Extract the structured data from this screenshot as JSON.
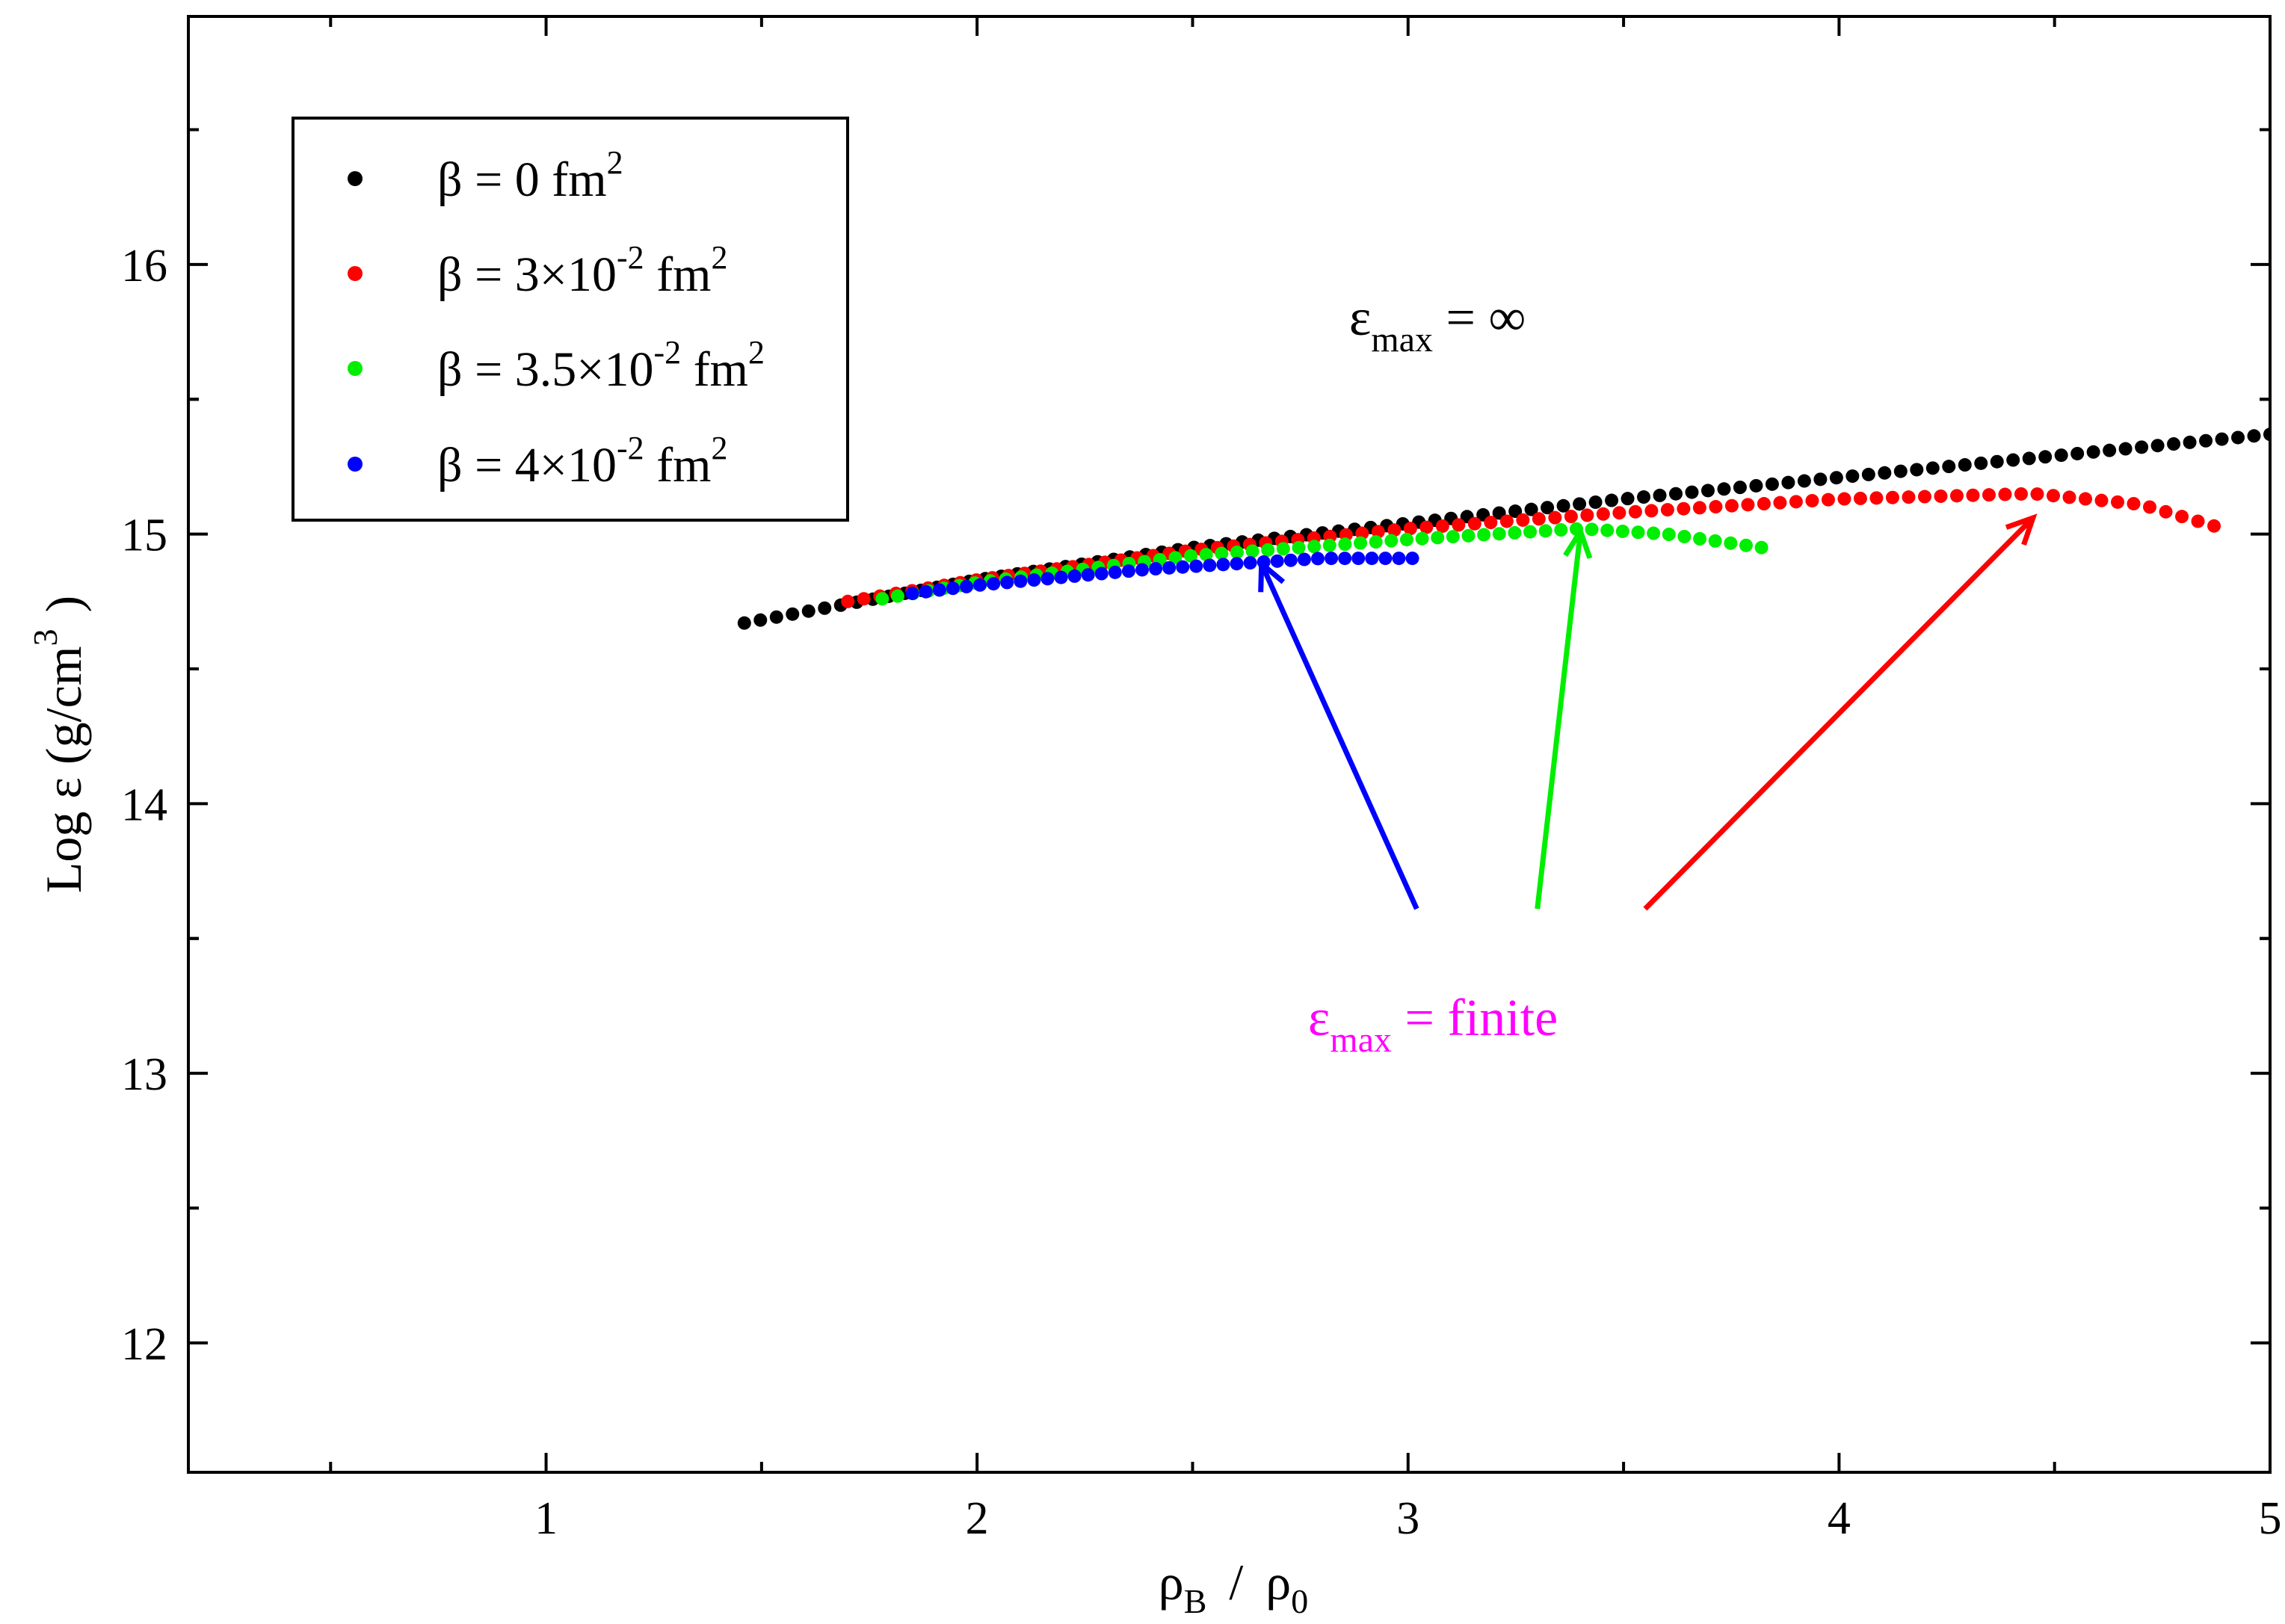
{
  "chart_data": {
    "type": "scatter",
    "title": "",
    "xlabel": {
      "main": "ρ",
      "sub1": "B",
      "slash": "/",
      "main2": "ρ",
      "sub2": "0"
    },
    "ylabel": {
      "text": "Log  ε  (g/cm",
      "sup": "3",
      "close": ")"
    },
    "xlim": [
      0.17,
      5.0
    ],
    "ylim": [
      11.52,
      16.92
    ],
    "xticks": [
      1,
      2,
      3,
      4,
      5
    ],
    "xtick_labels": [
      "1",
      "2",
      "3",
      "4",
      "5"
    ],
    "yticks": [
      12,
      13,
      14,
      15,
      16
    ],
    "ytick_labels": [
      "12",
      "13",
      "14",
      "15",
      "16"
    ],
    "grid": false,
    "legend_position": "top-left",
    "legend": [
      {
        "pre": "β = 0  fm",
        "sup": "2",
        "post": "",
        "color": "#000000"
      },
      {
        "pre": "β = 3×10",
        "sup": "-2",
        "post": " fm",
        "sup2": "2",
        "color": "#ff0000"
      },
      {
        "pre": "β = 3.5×10",
        "sup": "-2",
        "post": " fm",
        "sup2": "2",
        "color": "#00ee00"
      },
      {
        "pre": "β = 4×10",
        "sup": "-2",
        "post": " fm",
        "sup2": "2",
        "color": "#0000ff"
      }
    ],
    "series": [
      {
        "name": "β = 0 fm²",
        "color": "#000000",
        "x_range": [
          1.46,
          5.0
        ],
        "count": 96,
        "anchors": [
          [
            1.46,
            14.67
          ],
          [
            2.0,
            14.83
          ],
          [
            2.5,
            14.95
          ],
          [
            3.0,
            15.04
          ],
          [
            3.5,
            15.13
          ],
          [
            4.0,
            15.21
          ],
          [
            4.5,
            15.29
          ],
          [
            5.0,
            15.37
          ]
        ]
      },
      {
        "name": "β = 3×10⁻² fm²",
        "color": "#ff0000",
        "x_range": [
          1.7,
          4.87
        ],
        "count": 86,
        "anchors": [
          [
            1.7,
            14.75
          ],
          [
            2.0,
            14.83
          ],
          [
            2.5,
            14.94
          ],
          [
            3.0,
            15.02
          ],
          [
            3.5,
            15.08
          ],
          [
            4.0,
            15.13
          ],
          [
            4.45,
            15.15
          ],
          [
            4.7,
            15.11
          ],
          [
            4.87,
            15.03
          ]
        ]
      },
      {
        "name": "β = 3.5×10⁻² fm²",
        "color": "#00ee00",
        "x_range": [
          1.78,
          3.82
        ],
        "count": 58,
        "anchors": [
          [
            1.78,
            14.76
          ],
          [
            2.0,
            14.82
          ],
          [
            2.5,
            14.92
          ],
          [
            3.0,
            14.98
          ],
          [
            3.4,
            15.02
          ],
          [
            3.6,
            15.0
          ],
          [
            3.82,
            14.95
          ]
        ]
      },
      {
        "name": "β = 4×10⁻² fm²",
        "color": "#0000ff",
        "x_range": [
          1.85,
          3.01
        ],
        "count": 38,
        "anchors": [
          [
            1.85,
            14.78
          ],
          [
            2.0,
            14.81
          ],
          [
            2.4,
            14.87
          ],
          [
            2.8,
            14.91
          ],
          [
            3.01,
            14.91
          ]
        ]
      }
    ],
    "annotations": {
      "infinite": {
        "main": "ε",
        "sub": "max",
        "rest": " = ∞",
        "color": "#000000",
        "at": [
          3.05,
          15.75
        ]
      },
      "finite": {
        "main": "ε",
        "sub": "max",
        "rest": " = finite",
        "color": "#ff00ff",
        "at": [
          2.8,
          13.14
        ]
      },
      "arrows": [
        {
          "color": "#0000ff",
          "from": [
            3.02,
            13.61
          ],
          "to": [
            2.66,
            14.89
          ]
        },
        {
          "color": "#00ee00",
          "from": [
            3.3,
            13.61
          ],
          "to": [
            3.4,
            15.01
          ]
        },
        {
          "color": "#ff0000",
          "from": [
            3.55,
            13.61
          ],
          "to": [
            4.45,
            15.06
          ]
        }
      ]
    }
  }
}
